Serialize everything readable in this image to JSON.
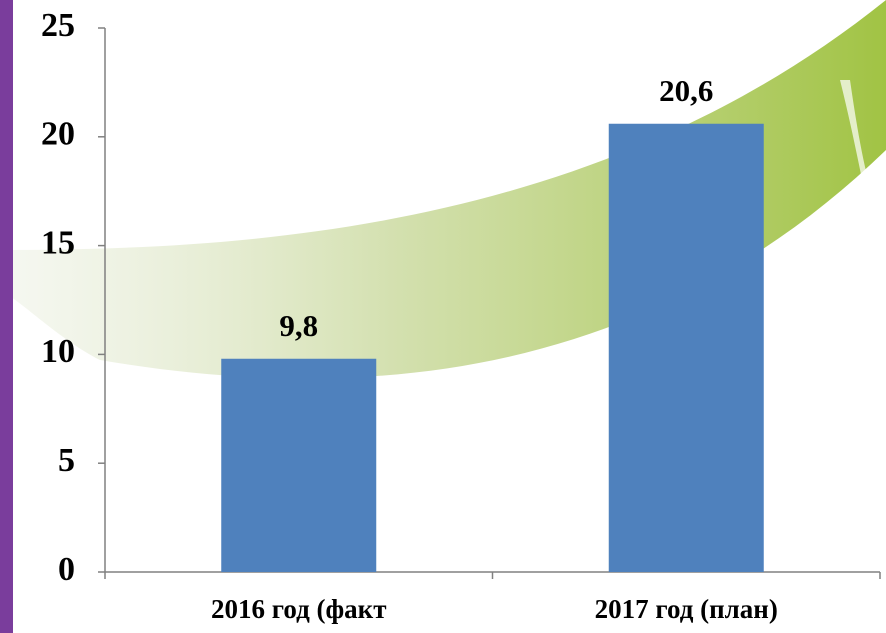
{
  "chart_data": {
    "type": "bar",
    "categories": [
      "2016 год (факт",
      "2017 год (план)"
    ],
    "values": [
      9.8,
      20.6
    ],
    "value_labels": [
      "9,8",
      "20,6"
    ],
    "color": "#4f81bd",
    "ylim": [
      0,
      25
    ],
    "yticks": [
      0,
      5,
      10,
      15,
      20,
      25
    ],
    "grid": false
  }
}
